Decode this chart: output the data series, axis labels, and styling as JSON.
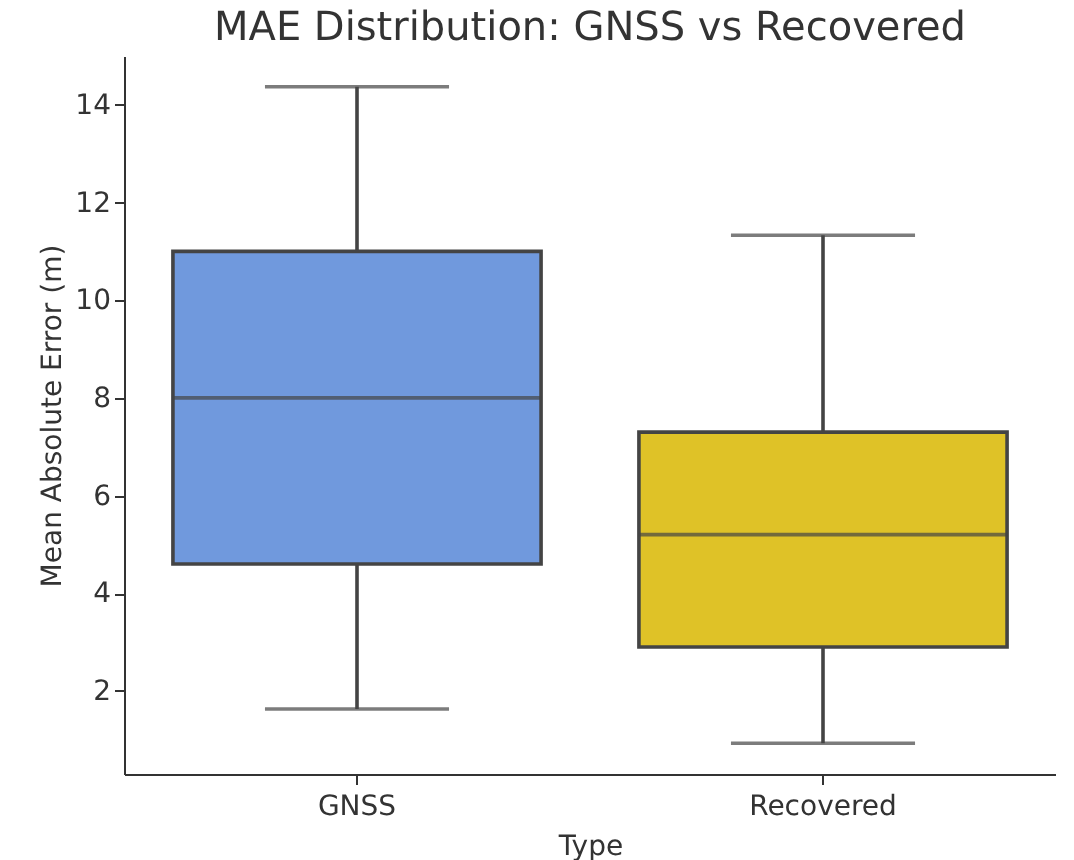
{
  "chart_data": {
    "type": "box",
    "title": "MAE Distribution: GNSS vs Recovered",
    "xlabel": "Type",
    "ylabel": "Mean Absolute Error (m)",
    "categories": [
      "GNSS",
      "Recovered"
    ],
    "colors": [
      "#7099dd",
      "#dfc227"
    ],
    "boxes": [
      {
        "low": 1.63,
        "q1": 4.6,
        "median": 8.0,
        "q3": 11.0,
        "high": 14.37
      },
      {
        "low": 0.93,
        "q1": 2.9,
        "median": 5.2,
        "q3": 7.3,
        "high": 11.33
      }
    ],
    "ylim": [
      0.3,
      15
    ],
    "yticks": [
      2,
      4,
      6,
      8,
      10,
      12,
      14
    ],
    "grid": false
  }
}
